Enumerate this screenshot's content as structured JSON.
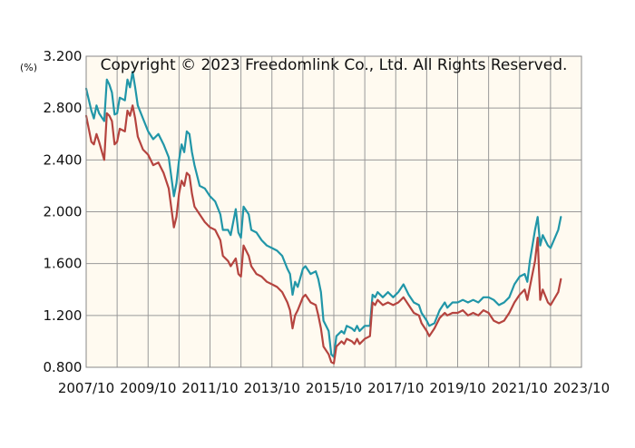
{
  "chart_data": {
    "type": "line",
    "unit_label": "(%)",
    "watermark": "Copyright © 2023 Freedomlink Co., Ltd. All Rights Reserved.",
    "ylim": [
      0.8,
      3.2
    ],
    "y_ticks": [
      "3.200",
      "2.800",
      "2.400",
      "2.000",
      "1.600",
      "1.200",
      "0.800"
    ],
    "x_ticks": [
      "2007/10",
      "2009/10",
      "2011/10",
      "2013/10",
      "2015/10",
      "2017/10",
      "2019/10",
      "2021/10",
      "2023/10"
    ],
    "grid": true,
    "series": [
      {
        "color": "#2196a8",
        "points": [
          [
            "2007/10",
            2.95
          ],
          [
            "2007/12",
            2.78
          ],
          [
            "2008/01",
            2.72
          ],
          [
            "2008/02",
            2.82
          ],
          [
            "2008/03",
            2.76
          ],
          [
            "2008/05",
            2.7
          ],
          [
            "2008/06",
            3.02
          ],
          [
            "2008/07",
            2.98
          ],
          [
            "2008/08",
            2.92
          ],
          [
            "2008/09",
            2.75
          ],
          [
            "2008/10",
            2.76
          ],
          [
            "2008/11",
            2.88
          ],
          [
            "2009/01",
            2.86
          ],
          [
            "2009/02",
            3.02
          ],
          [
            "2009/03",
            2.96
          ],
          [
            "2009/04",
            3.08
          ],
          [
            "2009/05",
            2.96
          ],
          [
            "2009/06",
            2.82
          ],
          [
            "2009/08",
            2.72
          ],
          [
            "2009/10",
            2.62
          ],
          [
            "2009/12",
            2.56
          ],
          [
            "2010/02",
            2.6
          ],
          [
            "2010/04",
            2.52
          ],
          [
            "2010/06",
            2.42
          ],
          [
            "2010/08",
            2.12
          ],
          [
            "2010/09",
            2.22
          ],
          [
            "2010/10",
            2.4
          ],
          [
            "2010/11",
            2.52
          ],
          [
            "2010/12",
            2.46
          ],
          [
            "2011/01",
            2.62
          ],
          [
            "2011/02",
            2.6
          ],
          [
            "2011/03",
            2.46
          ],
          [
            "2011/04",
            2.36
          ],
          [
            "2011/06",
            2.2
          ],
          [
            "2011/08",
            2.18
          ],
          [
            "2011/10",
            2.12
          ],
          [
            "2011/12",
            2.08
          ],
          [
            "2012/02",
            1.98
          ],
          [
            "2012/03",
            1.86
          ],
          [
            "2012/05",
            1.86
          ],
          [
            "2012/06",
            1.82
          ],
          [
            "2012/08",
            2.02
          ],
          [
            "2012/09",
            1.84
          ],
          [
            "2012/10",
            1.8
          ],
          [
            "2012/11",
            2.04
          ],
          [
            "2013/01",
            1.98
          ],
          [
            "2013/02",
            1.86
          ],
          [
            "2013/04",
            1.84
          ],
          [
            "2013/06",
            1.78
          ],
          [
            "2013/08",
            1.74
          ],
          [
            "2013/10",
            1.72
          ],
          [
            "2013/12",
            1.7
          ],
          [
            "2014/02",
            1.66
          ],
          [
            "2014/04",
            1.56
          ],
          [
            "2014/05",
            1.52
          ],
          [
            "2014/06",
            1.36
          ],
          [
            "2014/07",
            1.46
          ],
          [
            "2014/08",
            1.42
          ],
          [
            "2014/10",
            1.56
          ],
          [
            "2014/11",
            1.58
          ],
          [
            "2015/01",
            1.52
          ],
          [
            "2015/03",
            1.54
          ],
          [
            "2015/04",
            1.48
          ],
          [
            "2015/05",
            1.38
          ],
          [
            "2015/06",
            1.16
          ],
          [
            "2015/08",
            1.08
          ],
          [
            "2015/09",
            0.9
          ],
          [
            "2015/10",
            0.88
          ],
          [
            "2015/11",
            1.04
          ],
          [
            "2016/01",
            1.08
          ],
          [
            "2016/02",
            1.06
          ],
          [
            "2016/03",
            1.12
          ],
          [
            "2016/05",
            1.1
          ],
          [
            "2016/06",
            1.08
          ],
          [
            "2016/07",
            1.12
          ],
          [
            "2016/08",
            1.08
          ],
          [
            "2016/10",
            1.12
          ],
          [
            "2016/12",
            1.12
          ],
          [
            "2017/01",
            1.36
          ],
          [
            "2017/02",
            1.34
          ],
          [
            "2017/03",
            1.38
          ],
          [
            "2017/05",
            1.34
          ],
          [
            "2017/07",
            1.38
          ],
          [
            "2017/09",
            1.34
          ],
          [
            "2017/11",
            1.38
          ],
          [
            "2018/01",
            1.44
          ],
          [
            "2018/03",
            1.36
          ],
          [
            "2018/05",
            1.3
          ],
          [
            "2018/07",
            1.28
          ],
          [
            "2018/08",
            1.22
          ],
          [
            "2018/10",
            1.16
          ],
          [
            "2018/11",
            1.12
          ],
          [
            "2019/01",
            1.14
          ],
          [
            "2019/03",
            1.24
          ],
          [
            "2019/05",
            1.3
          ],
          [
            "2019/06",
            1.26
          ],
          [
            "2019/08",
            1.3
          ],
          [
            "2019/10",
            1.3
          ],
          [
            "2019/12",
            1.32
          ],
          [
            "2020/02",
            1.3
          ],
          [
            "2020/04",
            1.32
          ],
          [
            "2020/06",
            1.3
          ],
          [
            "2020/08",
            1.34
          ],
          [
            "2020/10",
            1.34
          ],
          [
            "2020/12",
            1.32
          ],
          [
            "2021/02",
            1.28
          ],
          [
            "2021/04",
            1.3
          ],
          [
            "2021/06",
            1.34
          ],
          [
            "2021/08",
            1.44
          ],
          [
            "2021/10",
            1.5
          ],
          [
            "2021/12",
            1.52
          ],
          [
            "2022/01",
            1.46
          ],
          [
            "2022/02",
            1.62
          ],
          [
            "2022/04",
            1.86
          ],
          [
            "2022/05",
            1.96
          ],
          [
            "2022/06",
            1.74
          ],
          [
            "2022/07",
            1.82
          ],
          [
            "2022/09",
            1.74
          ],
          [
            "2022/10",
            1.72
          ],
          [
            "2023/01",
            1.86
          ],
          [
            "2023/02",
            1.96
          ]
        ]
      },
      {
        "color": "#b5443f",
        "points": [
          [
            "2007/10",
            2.74
          ],
          [
            "2007/12",
            2.54
          ],
          [
            "2008/01",
            2.52
          ],
          [
            "2008/02",
            2.6
          ],
          [
            "2008/03",
            2.54
          ],
          [
            "2008/05",
            2.4
          ],
          [
            "2008/06",
            2.76
          ],
          [
            "2008/07",
            2.74
          ],
          [
            "2008/08",
            2.7
          ],
          [
            "2008/09",
            2.52
          ],
          [
            "2008/10",
            2.54
          ],
          [
            "2008/11",
            2.64
          ],
          [
            "2009/01",
            2.62
          ],
          [
            "2009/02",
            2.78
          ],
          [
            "2009/03",
            2.74
          ],
          [
            "2009/04",
            2.82
          ],
          [
            "2009/05",
            2.72
          ],
          [
            "2009/06",
            2.58
          ],
          [
            "2009/08",
            2.48
          ],
          [
            "2009/10",
            2.44
          ],
          [
            "2009/12",
            2.36
          ],
          [
            "2010/02",
            2.38
          ],
          [
            "2010/04",
            2.3
          ],
          [
            "2010/06",
            2.18
          ],
          [
            "2010/08",
            1.88
          ],
          [
            "2010/09",
            1.96
          ],
          [
            "2010/10",
            2.14
          ],
          [
            "2010/11",
            2.24
          ],
          [
            "2010/12",
            2.2
          ],
          [
            "2011/01",
            2.3
          ],
          [
            "2011/02",
            2.28
          ],
          [
            "2011/03",
            2.14
          ],
          [
            "2011/04",
            2.04
          ],
          [
            "2011/06",
            1.98
          ],
          [
            "2011/08",
            1.92
          ],
          [
            "2011/10",
            1.88
          ],
          [
            "2011/12",
            1.86
          ],
          [
            "2012/02",
            1.78
          ],
          [
            "2012/03",
            1.66
          ],
          [
            "2012/05",
            1.62
          ],
          [
            "2012/06",
            1.58
          ],
          [
            "2012/08",
            1.64
          ],
          [
            "2012/09",
            1.52
          ],
          [
            "2012/10",
            1.5
          ],
          [
            "2012/11",
            1.74
          ],
          [
            "2013/01",
            1.66
          ],
          [
            "2013/02",
            1.58
          ],
          [
            "2013/04",
            1.52
          ],
          [
            "2013/06",
            1.5
          ],
          [
            "2013/08",
            1.46
          ],
          [
            "2013/10",
            1.44
          ],
          [
            "2013/12",
            1.42
          ],
          [
            "2014/02",
            1.38
          ],
          [
            "2014/04",
            1.3
          ],
          [
            "2014/05",
            1.24
          ],
          [
            "2014/06",
            1.1
          ],
          [
            "2014/07",
            1.2
          ],
          [
            "2014/08",
            1.24
          ],
          [
            "2014/10",
            1.34
          ],
          [
            "2014/11",
            1.36
          ],
          [
            "2015/01",
            1.3
          ],
          [
            "2015/03",
            1.28
          ],
          [
            "2015/04",
            1.2
          ],
          [
            "2015/05",
            1.1
          ],
          [
            "2015/06",
            0.96
          ],
          [
            "2015/08",
            0.9
          ],
          [
            "2015/09",
            0.84
          ],
          [
            "2015/10",
            0.83
          ],
          [
            "2015/11",
            0.96
          ],
          [
            "2016/01",
            1.0
          ],
          [
            "2016/02",
            0.98
          ],
          [
            "2016/03",
            1.02
          ],
          [
            "2016/05",
            1.0
          ],
          [
            "2016/06",
            0.98
          ],
          [
            "2016/07",
            1.02
          ],
          [
            "2016/08",
            0.98
          ],
          [
            "2016/10",
            1.02
          ],
          [
            "2016/12",
            1.04
          ],
          [
            "2017/01",
            1.3
          ],
          [
            "2017/02",
            1.28
          ],
          [
            "2017/03",
            1.32
          ],
          [
            "2017/05",
            1.28
          ],
          [
            "2017/07",
            1.3
          ],
          [
            "2017/09",
            1.28
          ],
          [
            "2017/11",
            1.3
          ],
          [
            "2018/01",
            1.34
          ],
          [
            "2018/03",
            1.28
          ],
          [
            "2018/05",
            1.22
          ],
          [
            "2018/07",
            1.2
          ],
          [
            "2018/08",
            1.14
          ],
          [
            "2018/10",
            1.08
          ],
          [
            "2018/11",
            1.04
          ],
          [
            "2019/01",
            1.1
          ],
          [
            "2019/03",
            1.18
          ],
          [
            "2019/05",
            1.22
          ],
          [
            "2019/06",
            1.2
          ],
          [
            "2019/08",
            1.22
          ],
          [
            "2019/10",
            1.22
          ],
          [
            "2019/12",
            1.24
          ],
          [
            "2020/02",
            1.2
          ],
          [
            "2020/04",
            1.22
          ],
          [
            "2020/06",
            1.2
          ],
          [
            "2020/08",
            1.24
          ],
          [
            "2020/10",
            1.22
          ],
          [
            "2020/12",
            1.16
          ],
          [
            "2021/02",
            1.14
          ],
          [
            "2021/04",
            1.16
          ],
          [
            "2021/06",
            1.22
          ],
          [
            "2021/08",
            1.3
          ],
          [
            "2021/10",
            1.36
          ],
          [
            "2021/12",
            1.4
          ],
          [
            "2022/01",
            1.32
          ],
          [
            "2022/02",
            1.42
          ],
          [
            "2022/04",
            1.62
          ],
          [
            "2022/05",
            1.8
          ],
          [
            "2022/06",
            1.32
          ],
          [
            "2022/07",
            1.4
          ],
          [
            "2022/09",
            1.3
          ],
          [
            "2022/10",
            1.28
          ],
          [
            "2023/01",
            1.38
          ],
          [
            "2023/02",
            1.48
          ]
        ]
      }
    ]
  }
}
